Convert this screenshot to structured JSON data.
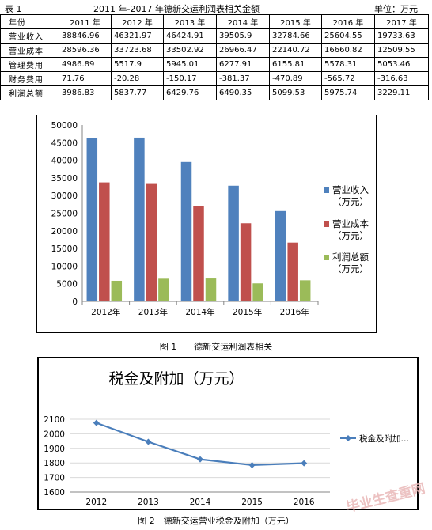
{
  "table": {
    "label": "表 1",
    "title": "2011 年-2017 年德新交运利润表相关金额",
    "unit": "单位：万元",
    "headers": [
      "年份",
      "2011 年",
      "2012 年",
      "2013 年",
      "2014 年",
      "2015 年",
      "2016 年",
      "2017 年"
    ],
    "rows": [
      {
        "name": "营业收入",
        "values": [
          "38846.96",
          "46321.97",
          "46424.91",
          "39505.9",
          "32784.66",
          "25604.55",
          "19733.63"
        ]
      },
      {
        "name": "营业成本",
        "values": [
          "28596.36",
          "33723.68",
          "33502.92",
          "26966.47",
          "22140.72",
          "16660.82",
          "12509.55"
        ]
      },
      {
        "name": "管理费用",
        "values": [
          "4986.89",
          "5517.9",
          "5945.01",
          "6277.91",
          "6155.81",
          "5578.31",
          "5053.46"
        ]
      },
      {
        "name": "财务费用",
        "values": [
          "71.76",
          "-20.28",
          "-150.17",
          "-381.37",
          "-470.89",
          "-565.72",
          "-316.63"
        ]
      },
      {
        "name": "利润总额",
        "values": [
          "3986.83",
          "5837.77",
          "6429.76",
          "6490.35",
          "5099.53",
          "5975.74",
          "3229.11"
        ]
      }
    ]
  },
  "figure1_caption": "图 1　　德新交运利润表相关",
  "figure2_caption": "图 2　德新交运营业税金及附加（万元）",
  "watermark": "毕业生查重网",
  "colors": {
    "revenue": "#4f81bd",
    "cost": "#c0504d",
    "profit": "#9bbb59",
    "tax": "#4a7ebb",
    "grid": "#d9d9d9"
  },
  "chart_data": [
    {
      "type": "bar",
      "categories": [
        "2012年",
        "2013年",
        "2014年",
        "2015年",
        "2016年"
      ],
      "series": [
        {
          "name": "营业收入（万元）",
          "legend_lines": [
            "营业收入",
            "（万元）"
          ],
          "values": [
            46321.97,
            46424.91,
            39505.9,
            32784.66,
            25604.55
          ]
        },
        {
          "name": "营业成本（万元）",
          "legend_lines": [
            "营业成本",
            "（万元）"
          ],
          "values": [
            33723.68,
            33502.92,
            26966.47,
            22140.72,
            16660.82
          ]
        },
        {
          "name": "利润总额（万元）",
          "legend_lines": [
            "利润总额",
            "（万元）"
          ],
          "values": [
            5837.77,
            6429.76,
            6490.35,
            5099.53,
            5975.74
          ]
        }
      ],
      "ylim": [
        0,
        50000
      ],
      "yticks": [
        0,
        5000,
        10000,
        15000,
        20000,
        25000,
        30000,
        35000,
        40000,
        45000,
        50000
      ],
      "grid": false,
      "legend": "right"
    },
    {
      "type": "line",
      "title": "税金及附加（万元）",
      "categories": [
        "2012",
        "2013",
        "2014",
        "2015",
        "2016"
      ],
      "series": [
        {
          "name": "税金及附加…",
          "values": [
            2075,
            1945,
            1825,
            1785,
            1798
          ]
        }
      ],
      "ylim": [
        1600,
        2100
      ],
      "yticks": [
        1600,
        1700,
        1800,
        1900,
        2000,
        2100
      ],
      "grid": true,
      "legend": "right"
    }
  ]
}
